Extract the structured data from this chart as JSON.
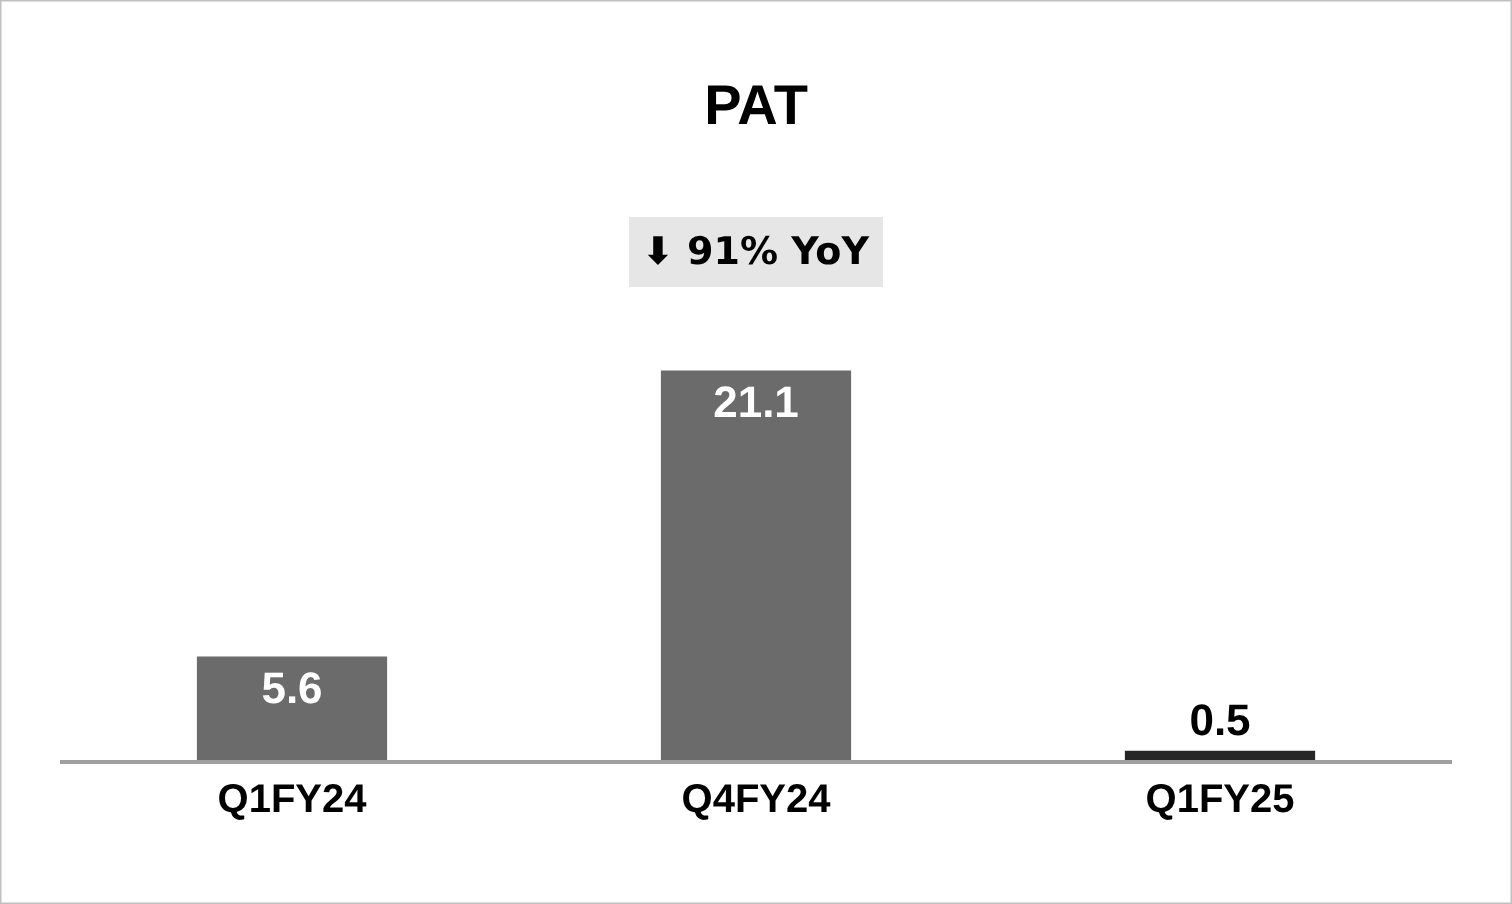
{
  "chart_data": {
    "type": "bar",
    "title": "PAT",
    "subtitle": "⬇ 91% YoY",
    "categories": [
      "Q1FY24",
      "Q4FY24",
      "Q1FY25"
    ],
    "values": [
      5.6,
      21.1,
      0.5
    ],
    "colors": [
      "#6b6b6b",
      "#6b6b6b",
      "#262626"
    ],
    "data_labels": true
  }
}
